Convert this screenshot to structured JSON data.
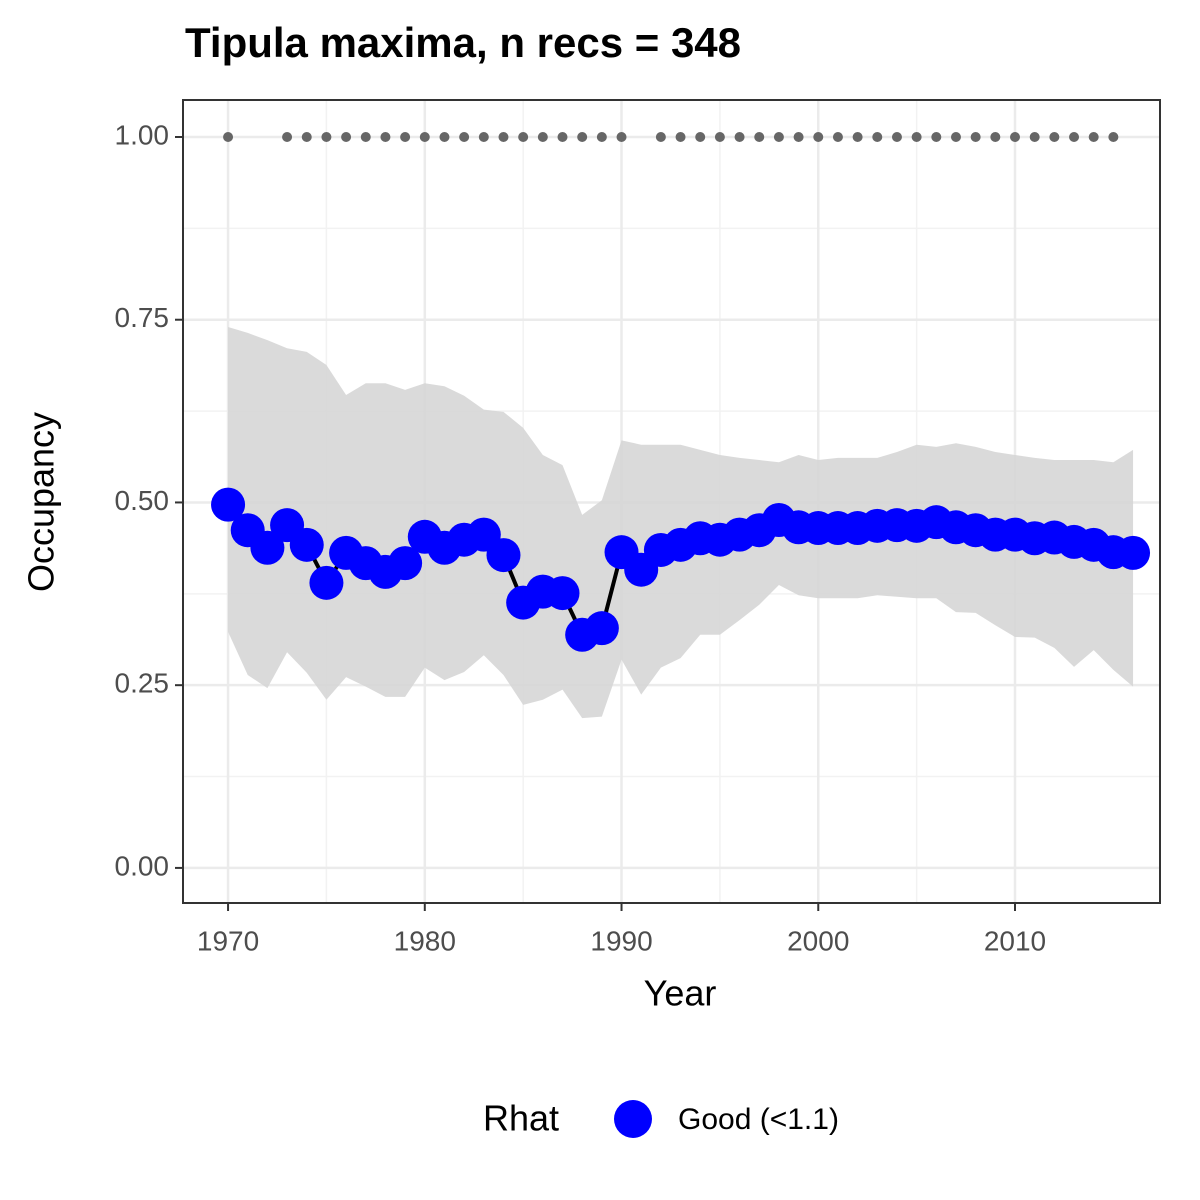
{
  "chart_data": {
    "type": "line",
    "title": "Tipula maxima, n recs = 348",
    "xlabel": "Year",
    "ylabel": "Occupancy",
    "legend_title": "Rhat",
    "xlim": [
      1967.71,
      2017.37
    ],
    "ylim": [
      -0.048,
      1.0506
    ],
    "xticks": [
      1970,
      1980,
      1990,
      2000,
      2010
    ],
    "yticks": [
      {
        "value": 0,
        "label": "0.00"
      },
      {
        "value": 0.25,
        "label": "0.25"
      },
      {
        "value": 0.5,
        "label": "0.50"
      },
      {
        "value": 0.75,
        "label": "0.75"
      },
      {
        "value": 1,
        "label": "1.00"
      }
    ],
    "grid": true,
    "x": [
      1970,
      1971,
      1972,
      1973,
      1974,
      1975,
      1976,
      1977,
      1978,
      1979,
      1980,
      1981,
      1982,
      1983,
      1984,
      1985,
      1986,
      1987,
      1988,
      1989,
      1990,
      1991,
      1992,
      1993,
      1994,
      1995,
      1996,
      1997,
      1998,
      1999,
      2000,
      2001,
      2002,
      2003,
      2004,
      2005,
      2006,
      2007,
      2008,
      2009,
      2010,
      2011,
      2012,
      2013,
      2014,
      2015,
      2016
    ],
    "series": [
      {
        "name": "Good (<1.1)",
        "color": "#0000ff",
        "line_color": "#000000",
        "band_color": "#d6d6d6",
        "values": [
          0.497,
          0.462,
          0.438,
          0.469,
          0.442,
          0.39,
          0.431,
          0.417,
          0.405,
          0.417,
          0.453,
          0.438,
          0.449,
          0.456,
          0.428,
          0.363,
          0.378,
          0.376,
          0.319,
          0.328,
          0.432,
          0.408,
          0.435,
          0.442,
          0.451,
          0.449,
          0.456,
          0.462,
          0.476,
          0.466,
          0.465,
          0.465,
          0.465,
          0.468,
          0.469,
          0.468,
          0.473,
          0.466,
          0.462,
          0.456,
          0.456,
          0.451,
          0.452,
          0.446,
          0.442,
          0.432,
          0.431
        ],
        "upper": [
          0.74,
          0.732,
          0.722,
          0.711,
          0.706,
          0.688,
          0.647,
          0.663,
          0.663,
          0.654,
          0.663,
          0.659,
          0.646,
          0.627,
          0.624,
          0.602,
          0.565,
          0.551,
          0.483,
          0.503,
          0.585,
          0.579,
          0.579,
          0.579,
          0.572,
          0.565,
          0.561,
          0.558,
          0.555,
          0.565,
          0.558,
          0.561,
          0.561,
          0.561,
          0.569,
          0.579,
          0.576,
          0.581,
          0.576,
          0.569,
          0.565,
          0.561,
          0.558,
          0.558,
          0.558,
          0.555,
          0.572
        ],
        "lower": [
          0.323,
          0.264,
          0.246,
          0.295,
          0.267,
          0.23,
          0.261,
          0.248,
          0.234,
          0.234,
          0.274,
          0.257,
          0.268,
          0.291,
          0.264,
          0.223,
          0.23,
          0.244,
          0.205,
          0.207,
          0.285,
          0.237,
          0.274,
          0.287,
          0.319,
          0.319,
          0.339,
          0.36,
          0.387,
          0.373,
          0.369,
          0.369,
          0.369,
          0.373,
          0.371,
          0.369,
          0.369,
          0.35,
          0.349,
          0.332,
          0.316,
          0.315,
          0.301,
          0.275,
          0.298,
          0.271,
          0.248
        ]
      }
    ],
    "records": {
      "color": "#666666",
      "x": [
        1970,
        1973,
        1974,
        1975,
        1976,
        1977,
        1978,
        1979,
        1980,
        1981,
        1982,
        1983,
        1984,
        1985,
        1986,
        1987,
        1988,
        1989,
        1990,
        1992,
        1993,
        1994,
        1995,
        1996,
        1997,
        1998,
        1999,
        2000,
        2001,
        2002,
        2003,
        2004,
        2005,
        2006,
        2007,
        2008,
        2009,
        2010,
        2011,
        2012,
        2013,
        2014,
        2015
      ],
      "values": [
        1,
        1,
        1,
        1,
        1,
        1,
        1,
        1,
        1,
        1,
        1,
        1,
        1,
        1,
        1,
        1,
        1,
        1,
        1,
        1,
        1,
        1,
        1,
        1,
        1,
        1,
        1,
        1,
        1,
        1,
        1,
        1,
        1,
        1,
        1,
        1,
        1,
        1,
        1,
        1,
        1,
        1,
        1
      ]
    }
  }
}
